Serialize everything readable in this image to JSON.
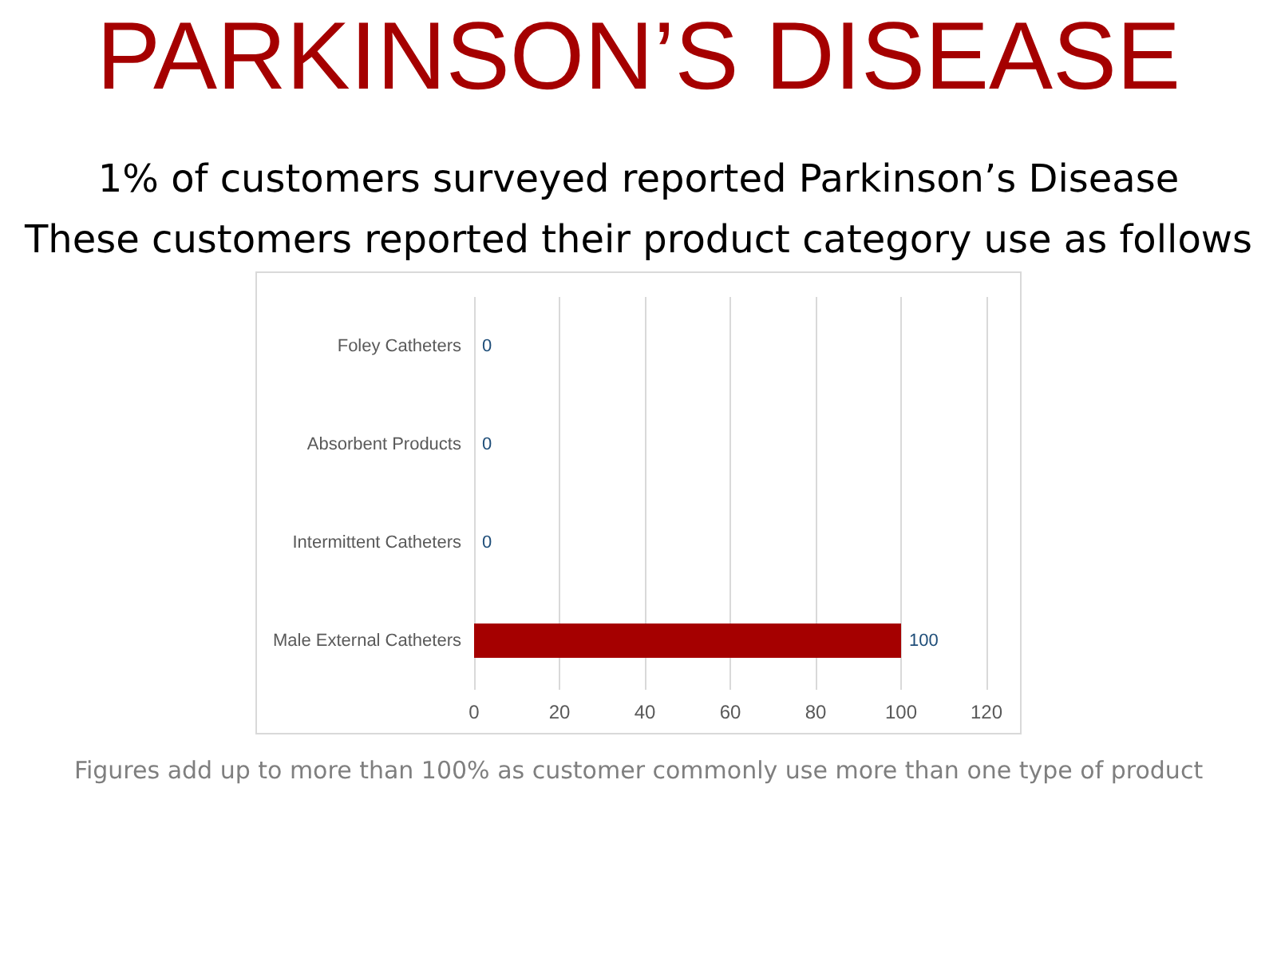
{
  "chart_data": {
    "type": "bar",
    "orientation": "horizontal",
    "title": "PARKINSON’S DISEASE",
    "subtitle": "1% of customers surveyed reported Parkinson’s Disease\nThese customers reported their product category use as follows",
    "categories": [
      "Foley Catheters",
      "Absorbent Products",
      "Intermittent Catheters",
      "Male External Catheters"
    ],
    "values": [
      0,
      0,
      0,
      100
    ],
    "color": "#a50000",
    "xlim": [
      0,
      120
    ],
    "xticks": [
      0,
      20,
      40,
      60,
      80,
      100,
      120
    ],
    "grid": "x",
    "data_labels": true,
    "annotations": [
      "Figures add up to more than 100% as customer commonly use more than one type of product"
    ]
  }
}
